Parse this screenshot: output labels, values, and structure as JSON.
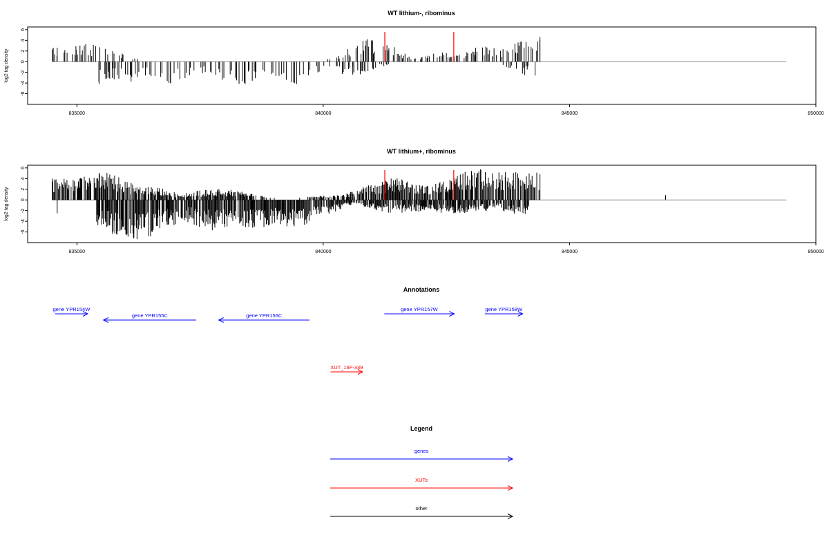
{
  "chart_data": [
    {
      "type": "bar",
      "title": "WT lithium-, ribominus",
      "xlabel": "",
      "ylabel": "log2 tag density",
      "xlim": [
        834000,
        850000
      ],
      "ylim": [
        -8,
        6.5
      ],
      "x_ticks": [
        835000,
        840000,
        845000,
        850000
      ],
      "y_ticks": [
        6,
        4,
        2,
        0,
        -2,
        -4,
        -6
      ],
      "baseline": {
        "x_start": 834500,
        "x_end": 849400,
        "y": 0
      },
      "marker_lines": [
        {
          "x": 841250,
          "y": 5.6,
          "color": "#ff0000"
        },
        {
          "x": 842650,
          "y": 5.6,
          "color": "#ff0000"
        }
      ],
      "positive_x_range": [
        834500,
        844400
      ],
      "negative_x_range": [
        835400,
        844200
      ],
      "peaks_pos": [
        [
          834520,
          2.6
        ],
        [
          834600,
          2.6
        ],
        [
          834980,
          2.9
        ],
        [
          835150,
          3.0
        ],
        [
          835380,
          2.9
        ],
        [
          841000,
          4.0
        ],
        [
          841250,
          1.5
        ],
        [
          842500,
          1.6
        ],
        [
          843300,
          2.8
        ],
        [
          844000,
          3.7
        ],
        [
          844400,
          4.6
        ]
      ],
      "peaks_neg": [
        [
          835450,
          -4.2
        ],
        [
          836100,
          -3.7
        ],
        [
          836900,
          -4.0
        ],
        [
          837950,
          -3.4
        ],
        [
          838400,
          -4.0
        ],
        [
          839400,
          -3.9
        ],
        [
          840600,
          -2.4
        ],
        [
          844300,
          -2.6
        ]
      ],
      "bar_width": 1
    },
    {
      "type": "bar",
      "title": "WT lithium+, ribominus",
      "xlabel": "",
      "ylabel": "log2 tag density",
      "xlim": [
        834000,
        850000
      ],
      "ylim": [
        -8,
        6.5
      ],
      "x_ticks": [
        835000,
        840000,
        845000,
        850000
      ],
      "y_ticks": [
        6,
        4,
        2,
        0,
        -2,
        -4,
        -6
      ],
      "baseline": {
        "x_start": 834500,
        "x_end": 849400,
        "y": 0
      },
      "marker_lines": [
        {
          "x": 841250,
          "y": 5.6,
          "color": "#ff0000"
        },
        {
          "x": 842650,
          "y": 5.6,
          "color": "#ff0000"
        }
      ],
      "positive_x_range": [
        834500,
        844400
      ],
      "negative_x_range": [
        835400,
        844200
      ],
      "peaks_pos": [
        [
          834550,
          3.8
        ],
        [
          835050,
          4.0
        ],
        [
          835450,
          4.8
        ],
        [
          836400,
          2.2
        ],
        [
          837850,
          1.9
        ],
        [
          840300,
          0.8
        ],
        [
          841500,
          3.8
        ],
        [
          842600,
          3.5
        ],
        [
          843200,
          5.6
        ],
        [
          843700,
          5.2
        ],
        [
          844400,
          4.8
        ],
        [
          846950,
          0.9
        ]
      ],
      "peaks_neg": [
        [
          834600,
          -2.5
        ],
        [
          835500,
          -4.6
        ],
        [
          836150,
          -7.2
        ],
        [
          836850,
          -4.6
        ],
        [
          837800,
          -5.2
        ],
        [
          838600,
          -5.0
        ],
        [
          839400,
          -4.6
        ],
        [
          841600,
          -2.4
        ],
        [
          842650,
          -2.5
        ],
        [
          843100,
          -2.0
        ],
        [
          844100,
          -2.6
        ]
      ],
      "bar_width": 1
    }
  ],
  "annotations": {
    "title": "Annotations",
    "genes": [
      {
        "label": "gene YPR154W",
        "start": 834560,
        "end": 835220,
        "strand": "+",
        "row": 0
      },
      {
        "label": "gene YPR155C",
        "start": 835540,
        "end": 837420,
        "strand": "-",
        "row": 1
      },
      {
        "label": "gene YPR156C",
        "start": 837880,
        "end": 839720,
        "strand": "-",
        "row": 1
      },
      {
        "label": "gene YPR157W",
        "start": 841240,
        "end": 842660,
        "strand": "+",
        "row": 0
      },
      {
        "label": "gene YPR158W",
        "start": 843280,
        "end": 844050,
        "strand": "+",
        "row": 0
      }
    ],
    "xuts": [
      {
        "label": "XUT_16F-339",
        "start": 840150,
        "end": 840800,
        "strand": "+"
      }
    ],
    "gene_color": "#0000ff",
    "xut_color": "#ff0000"
  },
  "legend": {
    "title": "Legend",
    "items": [
      {
        "label": "genes",
        "color": "#0000ff"
      },
      {
        "label": "XUTs",
        "color": "#ff0000"
      },
      {
        "label": "other",
        "color": "#000000"
      }
    ]
  }
}
